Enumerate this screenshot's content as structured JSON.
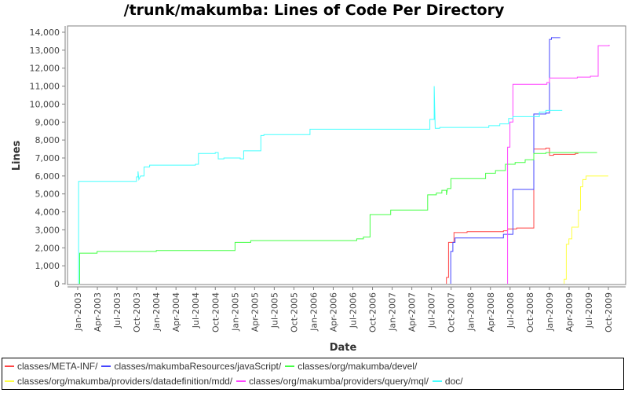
{
  "chart_data": {
    "type": "line",
    "title": "/trunk/makumba: Lines of Code Per Directory",
    "xlabel": "Date",
    "ylabel": "Lines",
    "ylim": [
      0,
      14000
    ],
    "yticks": [
      "0",
      "1,000",
      "2,000",
      "3,000",
      "4,000",
      "5,000",
      "6,000",
      "7,000",
      "8,000",
      "9,000",
      "10,000",
      "11,000",
      "12,000",
      "13,000",
      "14,000"
    ],
    "xticks": [
      "Jan-2003",
      "Apr-2003",
      "Jul-2003",
      "Oct-2003",
      "Jan-2004",
      "Apr-2004",
      "Jul-2004",
      "Oct-2004",
      "Jan-2005",
      "Apr-2005",
      "Jul-2005",
      "Oct-2005",
      "Jan-2006",
      "Apr-2006",
      "Jul-2006",
      "Oct-2006",
      "Jan-2007",
      "Apr-2007",
      "Jul-2007",
      "Oct-2007",
      "Jan-2008",
      "Apr-2008",
      "Jul-2008",
      "Oct-2008",
      "Jan-2009",
      "Apr-2009",
      "Jul-2009",
      "Oct-2009"
    ],
    "grid": false,
    "legend_position": "bottom",
    "step": true,
    "series": [
      {
        "name": "classes/META-INF/",
        "color": "#ff4444",
        "points": [
          [
            "2007-09-10",
            0
          ],
          [
            "2007-09-10",
            350
          ],
          [
            "2007-09-20",
            350
          ],
          [
            "2007-09-20",
            2300
          ],
          [
            "2007-10-15",
            2300
          ],
          [
            "2007-10-15",
            2850
          ],
          [
            "2007-12-15",
            2850
          ],
          [
            "2007-12-15",
            2900
          ],
          [
            "2008-06-01",
            2900
          ],
          [
            "2008-06-01",
            2950
          ],
          [
            "2008-06-20",
            2950
          ],
          [
            "2008-06-20",
            3050
          ],
          [
            "2008-08-01",
            3050
          ],
          [
            "2008-08-01",
            3100
          ],
          [
            "2008-10-20",
            3100
          ],
          [
            "2008-10-20",
            7500
          ],
          [
            "2008-12-15",
            7500
          ],
          [
            "2008-12-15",
            7550
          ],
          [
            "2009-01-01",
            7550
          ],
          [
            "2009-01-01",
            7150
          ],
          [
            "2009-01-20",
            7150
          ],
          [
            "2009-01-20",
            7200
          ],
          [
            "2009-05-01",
            7200
          ],
          [
            "2009-05-01",
            7250
          ],
          [
            "2009-05-15",
            7250
          ]
        ]
      },
      {
        "name": "classes/makumbaResources/javaScript/",
        "color": "#4444ff",
        "points": [
          [
            "2007-09-30",
            0
          ],
          [
            "2007-09-30",
            1800
          ],
          [
            "2007-10-10",
            1800
          ],
          [
            "2007-10-10",
            2300
          ],
          [
            "2007-10-20",
            2300
          ],
          [
            "2007-10-20",
            2550
          ],
          [
            "2008-06-01",
            2550
          ],
          [
            "2008-06-01",
            2750
          ],
          [
            "2008-07-15",
            2750
          ],
          [
            "2008-07-15",
            5250
          ],
          [
            "2008-10-20",
            5250
          ],
          [
            "2008-10-20",
            9450
          ],
          [
            "2008-12-15",
            9450
          ],
          [
            "2008-12-15",
            9500
          ],
          [
            "2009-01-01",
            9500
          ],
          [
            "2009-01-01",
            13600
          ],
          [
            "2009-01-10",
            13600
          ],
          [
            "2009-01-10",
            13700
          ],
          [
            "2009-02-20",
            13700
          ]
        ]
      },
      {
        "name": "classes/org/makumba/devel/",
        "color": "#44ff44",
        "points": [
          [
            "2003-01-10",
            0
          ],
          [
            "2003-01-10",
            1700
          ],
          [
            "2003-04-01",
            1700
          ],
          [
            "2003-04-01",
            1800
          ],
          [
            "2004-01-01",
            1800
          ],
          [
            "2004-01-01",
            1850
          ],
          [
            "2005-01-01",
            1850
          ],
          [
            "2005-01-01",
            2300
          ],
          [
            "2005-03-15",
            2300
          ],
          [
            "2005-03-15",
            2400
          ],
          [
            "2006-07-20",
            2400
          ],
          [
            "2006-07-20",
            2500
          ],
          [
            "2006-08-20",
            2500
          ],
          [
            "2006-08-20",
            2600
          ],
          [
            "2006-09-20",
            2600
          ],
          [
            "2006-09-20",
            3850
          ],
          [
            "2006-12-25",
            3850
          ],
          [
            "2006-12-25",
            4100
          ],
          [
            "2007-06-15",
            4100
          ],
          [
            "2007-06-15",
            4950
          ],
          [
            "2007-07-25",
            4950
          ],
          [
            "2007-07-25",
            5050
          ],
          [
            "2007-08-20",
            5050
          ],
          [
            "2007-08-20",
            5200
          ],
          [
            "2007-09-10",
            5200
          ],
          [
            "2007-09-10",
            4950
          ],
          [
            "2007-09-15",
            5300
          ],
          [
            "2007-10-01",
            5300
          ],
          [
            "2007-10-01",
            5850
          ],
          [
            "2008-03-10",
            5850
          ],
          [
            "2008-03-10",
            6150
          ],
          [
            "2008-04-25",
            6150
          ],
          [
            "2008-04-25",
            6300
          ],
          [
            "2008-06-10",
            6300
          ],
          [
            "2008-06-10",
            6650
          ],
          [
            "2008-07-25",
            6650
          ],
          [
            "2008-07-25",
            6750
          ],
          [
            "2008-09-10",
            6750
          ],
          [
            "2008-09-10",
            6900
          ],
          [
            "2008-10-20",
            6900
          ],
          [
            "2008-10-20",
            7250
          ],
          [
            "2008-12-15",
            7250
          ],
          [
            "2008-12-15",
            7300
          ],
          [
            "2009-08-10",
            7300
          ]
        ]
      },
      {
        "name": "classes/org/makumba/providers/datadefinition/mdd/",
        "color": "#ffff44",
        "points": [
          [
            "2009-03-10",
            0
          ],
          [
            "2009-03-10",
            250
          ],
          [
            "2009-03-20",
            250
          ],
          [
            "2009-03-20",
            2200
          ],
          [
            "2009-04-01",
            2200
          ],
          [
            "2009-04-01",
            2500
          ],
          [
            "2009-04-15",
            2500
          ],
          [
            "2009-04-15",
            3150
          ],
          [
            "2009-05-15",
            3150
          ],
          [
            "2009-05-15",
            4100
          ],
          [
            "2009-05-25",
            4100
          ],
          [
            "2009-05-25",
            5400
          ],
          [
            "2009-06-05",
            5400
          ],
          [
            "2009-06-05",
            5800
          ],
          [
            "2009-06-20",
            5800
          ],
          [
            "2009-06-20",
            6000
          ],
          [
            "2009-10-01",
            6000
          ]
        ]
      },
      {
        "name": "classes/org/makumba/providers/query/mql/",
        "color": "#ff44ff",
        "points": [
          [
            "2008-06-20",
            0
          ],
          [
            "2008-06-20",
            7600
          ],
          [
            "2008-07-01",
            7600
          ],
          [
            "2008-07-01",
            9000
          ],
          [
            "2008-07-15",
            9000
          ],
          [
            "2008-07-15",
            11100
          ],
          [
            "2008-12-20",
            11100
          ],
          [
            "2008-12-20",
            11200
          ],
          [
            "2009-01-01",
            11200
          ],
          [
            "2009-01-01",
            11450
          ],
          [
            "2009-05-10",
            11450
          ],
          [
            "2009-05-10",
            11500
          ],
          [
            "2009-07-10",
            11500
          ],
          [
            "2009-07-10",
            11550
          ],
          [
            "2009-08-15",
            11550
          ],
          [
            "2009-08-15",
            13250
          ],
          [
            "2009-10-05",
            13250
          ],
          [
            "2009-10-05",
            13300
          ]
        ]
      },
      {
        "name": "doc/",
        "color": "#44ffff",
        "points": [
          [
            "2003-01-05",
            0
          ],
          [
            "2003-01-05",
            5700
          ],
          [
            "2003-10-01",
            5700
          ],
          [
            "2003-10-01",
            5950
          ],
          [
            "2003-10-08",
            5950
          ],
          [
            "2003-10-08",
            6250
          ],
          [
            "2003-10-12",
            5800
          ],
          [
            "2003-10-20",
            6000
          ],
          [
            "2003-11-05",
            6000
          ],
          [
            "2003-11-05",
            6500
          ],
          [
            "2003-12-01",
            6500
          ],
          [
            "2003-12-01",
            6600
          ],
          [
            "2004-07-01",
            6600
          ],
          [
            "2004-07-01",
            6650
          ],
          [
            "2004-07-15",
            6650
          ],
          [
            "2004-07-15",
            7250
          ],
          [
            "2004-10-01",
            7250
          ],
          [
            "2004-10-01",
            7300
          ],
          [
            "2004-10-15",
            7300
          ],
          [
            "2004-10-15",
            6950
          ],
          [
            "2004-11-10",
            6950
          ],
          [
            "2004-11-10",
            7000
          ],
          [
            "2005-01-25",
            7000
          ],
          [
            "2005-01-25",
            6950
          ],
          [
            "2005-02-10",
            6950
          ],
          [
            "2005-02-10",
            7400
          ],
          [
            "2005-05-01",
            7400
          ],
          [
            "2005-05-01",
            8250
          ],
          [
            "2005-05-15",
            8250
          ],
          [
            "2005-05-15",
            8300
          ],
          [
            "2005-12-15",
            8300
          ],
          [
            "2005-12-15",
            8600
          ],
          [
            "2007-06-25",
            8600
          ],
          [
            "2007-06-25",
            9150
          ],
          [
            "2007-07-15",
            9150
          ],
          [
            "2007-07-15",
            11000
          ],
          [
            "2007-07-20",
            8650
          ],
          [
            "2007-08-10",
            8650
          ],
          [
            "2007-08-10",
            8700
          ],
          [
            "2008-03-25",
            8700
          ],
          [
            "2008-03-25",
            8800
          ],
          [
            "2008-05-15",
            8800
          ],
          [
            "2008-05-15",
            8900
          ],
          [
            "2008-06-25",
            8900
          ],
          [
            "2008-06-25",
            9200
          ],
          [
            "2008-07-15",
            9200
          ],
          [
            "2008-07-15",
            9300
          ],
          [
            "2008-11-15",
            9300
          ],
          [
            "2008-11-15",
            9550
          ],
          [
            "2008-12-15",
            9550
          ],
          [
            "2008-12-15",
            9650
          ],
          [
            "2009-03-01",
            9650
          ]
        ]
      }
    ]
  },
  "legend": {
    "rows": [
      [
        {
          "label": "classes/META-INF/",
          "color": "#ff4444"
        },
        {
          "label": "classes/makumbaResources/javaScript/",
          "color": "#4444ff"
        },
        {
          "label": "classes/org/makumba/devel/",
          "color": "#44ff44"
        }
      ],
      [
        {
          "label": "classes/org/makumba/providers/datadefinition/mdd/",
          "color": "#ffff44"
        },
        {
          "label": "classes/org/makumba/providers/query/mql/",
          "color": "#ff44ff"
        },
        {
          "label": "doc/",
          "color": "#44ffff"
        }
      ]
    ]
  }
}
